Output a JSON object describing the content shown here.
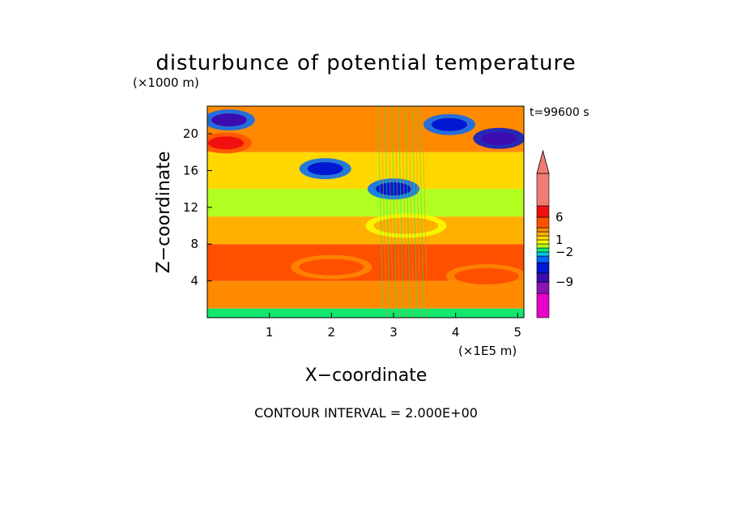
{
  "chart_data": {
    "type": "heatmap",
    "title": "disturbunce of potential temperature",
    "time_label": "t=99600 s",
    "xlabel": "X−coordinate",
    "ylabel": "Z−coordinate",
    "x_unit": "(×1E5 m)",
    "y_unit": "(×1000 m)",
    "xlim": [
      0,
      5.1
    ],
    "ylim": [
      0,
      23
    ],
    "x_ticks": [
      "1",
      "2",
      "3",
      "4",
      "5"
    ],
    "x_tick_values": [
      1,
      2,
      3,
      4,
      5
    ],
    "y_ticks": [
      "4",
      "8",
      "12",
      "16",
      "20"
    ],
    "y_tick_values": [
      4,
      8,
      12,
      16,
      20
    ],
    "footer": "CONTOUR INTERVAL = 2.000E+00",
    "colorbar": {
      "levels": [
        -13,
        -11,
        -9,
        -7,
        -5,
        -3,
        -2,
        -1,
        0,
        1,
        2,
        3,
        4,
        6,
        8,
        12
      ],
      "colors": [
        "#e800c8",
        "#8c14b4",
        "#3c0cb0",
        "#0018d2",
        "#0068ff",
        "#00c8e6",
        "#10e870",
        "#b0ff20",
        "#f8ff00",
        "#ffd800",
        "#ffb000",
        "#ff8a00",
        "#ff5000",
        "#f01010",
        "#f07c74"
      ],
      "tick_labels": [
        "6",
        "1",
        "−2",
        "−9"
      ],
      "tick_values": [
        6,
        1,
        -2,
        -9
      ],
      "extend": "max"
    },
    "field_description_bands": [
      {
        "z_range": [
          0,
          1
        ],
        "value": -2
      },
      {
        "z_range": [
          1,
          4
        ],
        "value": 3
      },
      {
        "z_range": [
          4,
          8
        ],
        "value": 4
      },
      {
        "z_range": [
          8,
          11
        ],
        "value": 2
      },
      {
        "z_range": [
          11,
          14
        ],
        "value": -1
      },
      {
        "z_range": [
          14,
          18
        ],
        "value": 1
      },
      {
        "z_range": [
          18,
          23
        ],
        "value": 3
      }
    ],
    "features": [
      {
        "x": 0.3,
        "z": 19.0,
        "value": 7
      },
      {
        "x": 0.35,
        "z": 21.5,
        "value": -8
      },
      {
        "x": 1.9,
        "z": 16.2,
        "value": -7
      },
      {
        "x": 3.0,
        "z": 14.0,
        "value": -7
      },
      {
        "x": 3.9,
        "z": 21.0,
        "value": -7
      },
      {
        "x": 4.7,
        "z": 19.5,
        "value": -9
      },
      {
        "x": 2.0,
        "z": 5.5,
        "value": 5
      },
      {
        "x": 4.5,
        "z": 4.5,
        "value": 5
      },
      {
        "x": 3.2,
        "z": 10.0,
        "value": 2
      }
    ]
  }
}
